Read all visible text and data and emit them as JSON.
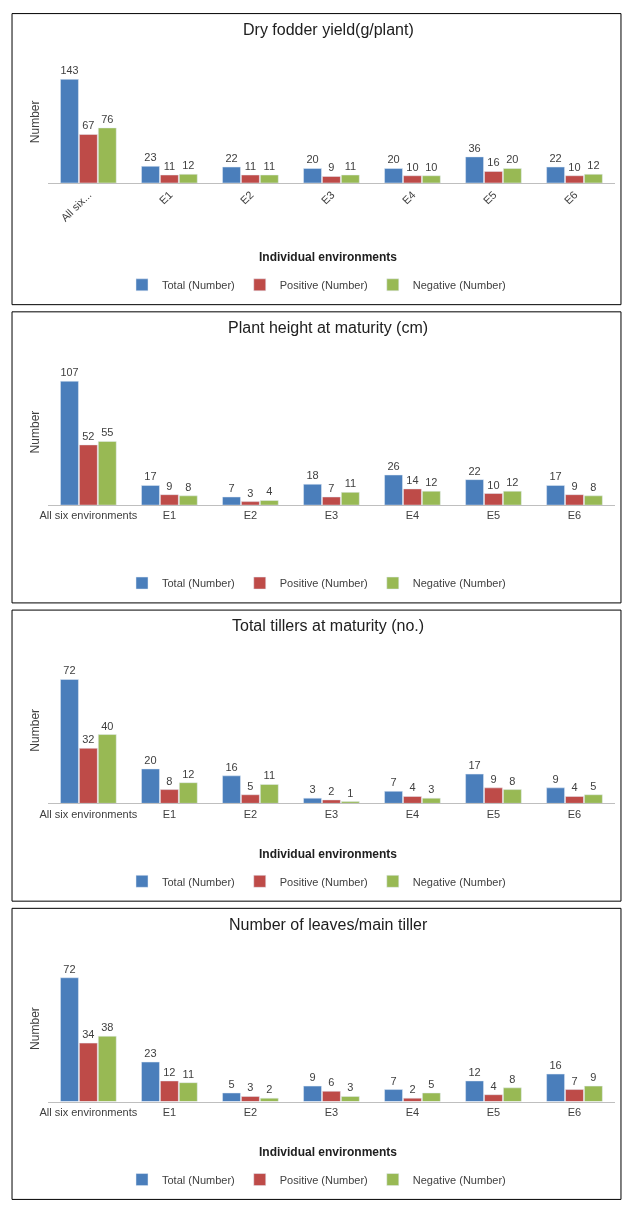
{
  "chart_data": [
    {
      "type": "bar",
      "title": "Dry fodder yield(g/plant)",
      "xlabel": "Individual environments",
      "ylabel": "Number",
      "categories": [
        "All six...",
        "E1",
        "E2",
        "E3",
        "E4",
        "E5",
        "E6"
      ],
      "data_labels": true,
      "legend": "bottom",
      "tick_labels": "x",
      "series": [
        {
          "name": "Total (Number)",
          "color": "#4a7ebb",
          "values": [
            143,
            23,
            22,
            20,
            20,
            36,
            22
          ]
        },
        {
          "name": "Positive (Number)",
          "color": "#be4b48",
          "values": [
            67,
            11,
            11,
            9,
            10,
            16,
            10
          ]
        },
        {
          "name": "Negative (Number)",
          "color": "#98b954",
          "values": [
            76,
            12,
            11,
            11,
            10,
            20,
            12
          ]
        }
      ]
    },
    {
      "type": "bar",
      "title": "Plant height at maturity (cm)",
      "ylabel": "Number",
      "categories": [
        "All six environments",
        "E1",
        "E2",
        "E3",
        "E4",
        "E5",
        "E6"
      ],
      "data_labels": true,
      "legend": "bottom",
      "tick_labels": "x",
      "series": [
        {
          "name": "Total (Number)",
          "color": "#4a7ebb",
          "values": [
            107,
            17,
            7,
            18,
            26,
            22,
            17
          ]
        },
        {
          "name": "Positive (Number)",
          "color": "#be4b48",
          "values": [
            52,
            9,
            3,
            7,
            14,
            10,
            9
          ]
        },
        {
          "name": "Negative (Number)",
          "color": "#98b954",
          "values": [
            55,
            8,
            4,
            11,
            12,
            12,
            8
          ]
        }
      ]
    },
    {
      "type": "bar",
      "title": "Total tillers at maturity (no.)",
      "xlabel": "Individual environments",
      "ylabel": "Number",
      "categories": [
        "All six environments",
        "E1",
        "E2",
        "E3",
        "E4",
        "E5",
        "E6"
      ],
      "data_labels": true,
      "legend": "bottom",
      "tick_labels": "x",
      "series": [
        {
          "name": "Total (Number)",
          "color": "#4a7ebb",
          "values": [
            72,
            20,
            16,
            3,
            7,
            17,
            9
          ]
        },
        {
          "name": "Positive (Number)",
          "color": "#be4b48",
          "values": [
            32,
            8,
            5,
            2,
            4,
            9,
            4
          ]
        },
        {
          "name": "Negative (Number)",
          "color": "#98b954",
          "values": [
            40,
            12,
            11,
            1,
            3,
            8,
            5
          ]
        }
      ]
    },
    {
      "type": "bar",
      "title": "Number of leaves/main tiller",
      "xlabel": "Individual environments",
      "ylabel": "Number",
      "categories": [
        "All six environments",
        "E1",
        "E2",
        "E3",
        "E4",
        "E5",
        "E6"
      ],
      "data_labels": true,
      "legend": "bottom",
      "tick_labels": "x",
      "series": [
        {
          "name": "Total (Number)",
          "color": "#4a7ebb",
          "values": [
            72,
            23,
            5,
            9,
            7,
            12,
            16
          ]
        },
        {
          "name": "Positive (Number)",
          "color": "#be4b48",
          "values": [
            34,
            12,
            3,
            6,
            2,
            4,
            7
          ]
        },
        {
          "name": "Negative (Number)",
          "color": "#98b954",
          "values": [
            38,
            11,
            2,
            3,
            5,
            8,
            9
          ]
        }
      ]
    }
  ]
}
